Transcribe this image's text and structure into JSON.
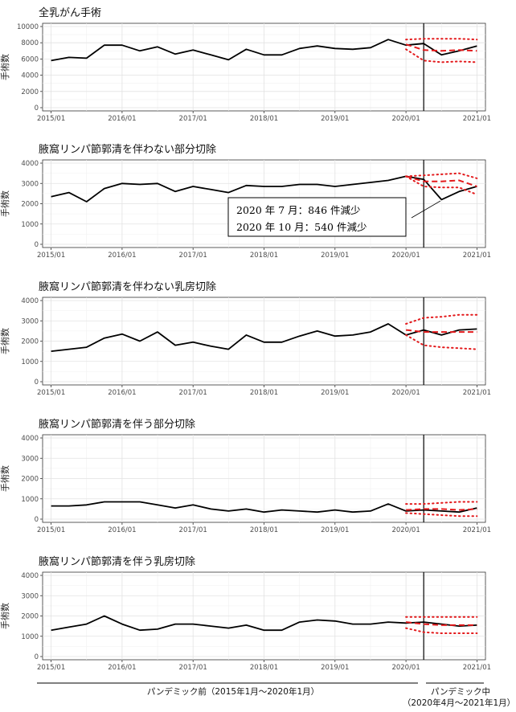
{
  "x_tick_labels": [
    "2015/01",
    "2016/01",
    "2017/01",
    "2018/01",
    "2019/01",
    "2020/01",
    "2021/01"
  ],
  "y_axis_label": "手術数",
  "footer": {
    "pre_pandemic": "パンデミック前（2015年1月～2020年1月）",
    "during_pandemic_1": "パンデミック中",
    "during_pandemic_2": "（2020年4月～2021年1月）"
  },
  "annotation": {
    "line1": "2020 年 7 月：846 件減少",
    "line2": "2020 年 10 月：540 件減少"
  },
  "chart_data": [
    {
      "type": "line",
      "title": "全乳がん手術",
      "ylabel": "手術数",
      "x_unit": "quarter_start",
      "ylim": [
        0,
        10000
      ],
      "yticks": [
        0,
        2000,
        4000,
        6000,
        8000,
        10000
      ],
      "observed": {
        "x": [
          "2015/01",
          "2015/04",
          "2015/07",
          "2015/10",
          "2016/01",
          "2016/04",
          "2016/07",
          "2016/10",
          "2017/01",
          "2017/04",
          "2017/07",
          "2017/10",
          "2018/01",
          "2018/04",
          "2018/07",
          "2018/10",
          "2019/01",
          "2019/04",
          "2019/07",
          "2019/10",
          "2020/01",
          "2020/04",
          "2020/07",
          "2020/10",
          "2021/01"
        ],
        "y": [
          5800,
          6200,
          6100,
          7700,
          7700,
          7000,
          7500,
          6600,
          7100,
          6500,
          5900,
          7200,
          6500,
          6500,
          7300,
          7600,
          7300,
          7200,
          7400,
          8400,
          7700,
          7900,
          6500,
          7000,
          7600
        ]
      },
      "expected": {
        "x": [
          "2020/01",
          "2020/04",
          "2020/07",
          "2020/10",
          "2021/01"
        ],
        "y": [
          7800,
          7100,
          7000,
          7100,
          7000
        ]
      },
      "upper": {
        "x": [
          "2020/01",
          "2020/04",
          "2020/07",
          "2020/10",
          "2021/01"
        ],
        "y": [
          8400,
          8500,
          8500,
          8500,
          8400
        ]
      },
      "lower": {
        "x": [
          "2020/01",
          "2020/04",
          "2020/07",
          "2020/10",
          "2021/01"
        ],
        "y": [
          7200,
          5800,
          5600,
          5700,
          5600
        ]
      }
    },
    {
      "type": "line",
      "title": "腋窩リンパ節郭清を伴わない部分切除",
      "ylabel": "手術数",
      "x_unit": "quarter_start",
      "ylim": [
        0,
        4000
      ],
      "yticks": [
        0,
        1000,
        2000,
        3000,
        4000
      ],
      "observed": {
        "x": [
          "2015/01",
          "2015/04",
          "2015/07",
          "2015/10",
          "2016/01",
          "2016/04",
          "2016/07",
          "2016/10",
          "2017/01",
          "2017/04",
          "2017/07",
          "2017/10",
          "2018/01",
          "2018/04",
          "2018/07",
          "2018/10",
          "2019/01",
          "2019/04",
          "2019/07",
          "2019/10",
          "2020/01",
          "2020/04",
          "2020/07",
          "2020/10",
          "2021/01"
        ],
        "y": [
          2350,
          2550,
          2100,
          2750,
          3000,
          2950,
          3000,
          2600,
          2850,
          2700,
          2550,
          2900,
          2850,
          2850,
          2950,
          2950,
          2850,
          2950,
          3050,
          3150,
          3350,
          3200,
          2200,
          2600,
          2850
        ]
      },
      "expected": {
        "x": [
          "2020/01",
          "2020/04",
          "2020/07",
          "2020/10",
          "2021/01"
        ],
        "y": [
          3350,
          3100,
          3100,
          3150,
          2850
        ]
      },
      "upper": {
        "x": [
          "2020/01",
          "2020/04",
          "2020/07",
          "2020/10",
          "2021/01"
        ],
        "y": [
          3350,
          3400,
          3450,
          3500,
          3250
        ]
      },
      "lower": {
        "x": [
          "2020/01",
          "2020/04",
          "2020/07",
          "2020/10",
          "2021/01"
        ],
        "y": [
          3350,
          2850,
          2800,
          2800,
          2450
        ]
      }
    },
    {
      "type": "line",
      "title": "腋窩リンパ節郭清を伴わない乳房切除",
      "ylabel": "手術数",
      "x_unit": "quarter_start",
      "ylim": [
        0,
        4000
      ],
      "yticks": [
        0,
        1000,
        2000,
        3000,
        4000
      ],
      "observed": {
        "x": [
          "2015/01",
          "2015/04",
          "2015/07",
          "2015/10",
          "2016/01",
          "2016/04",
          "2016/07",
          "2016/10",
          "2017/01",
          "2017/04",
          "2017/07",
          "2017/10",
          "2018/01",
          "2018/04",
          "2018/07",
          "2018/10",
          "2019/01",
          "2019/04",
          "2019/07",
          "2019/10",
          "2020/01",
          "2020/04",
          "2020/07",
          "2020/10",
          "2021/01"
        ],
        "y": [
          1500,
          1600,
          1700,
          2150,
          2350,
          2000,
          2450,
          1800,
          1950,
          1750,
          1600,
          2300,
          1950,
          1950,
          2250,
          2500,
          2250,
          2300,
          2450,
          2850,
          2300,
          2550,
          2300,
          2550,
          2600
        ]
      },
      "expected": {
        "x": [
          "2020/01",
          "2020/04",
          "2020/07",
          "2020/10",
          "2021/01"
        ],
        "y": [
          2550,
          2450,
          2450,
          2450,
          2450
        ]
      },
      "upper": {
        "x": [
          "2020/01",
          "2020/04",
          "2020/07",
          "2020/10",
          "2021/01"
        ],
        "y": [
          2850,
          3150,
          3200,
          3300,
          3300
        ]
      },
      "lower": {
        "x": [
          "2020/01",
          "2020/04",
          "2020/07",
          "2020/10",
          "2021/01"
        ],
        "y": [
          2300,
          1800,
          1700,
          1650,
          1600
        ]
      }
    },
    {
      "type": "line",
      "title": "腋窩リンパ節郭清を伴う部分切除",
      "ylabel": "手術数",
      "x_unit": "quarter_start",
      "ylim": [
        0,
        4000
      ],
      "yticks": [
        0,
        1000,
        2000,
        3000,
        4000
      ],
      "observed": {
        "x": [
          "2015/01",
          "2015/04",
          "2015/07",
          "2015/10",
          "2016/01",
          "2016/04",
          "2016/07",
          "2016/10",
          "2017/01",
          "2017/04",
          "2017/07",
          "2017/10",
          "2018/01",
          "2018/04",
          "2018/07",
          "2018/10",
          "2019/01",
          "2019/04",
          "2019/07",
          "2019/10",
          "2020/01",
          "2020/04",
          "2020/07",
          "2020/10",
          "2021/01"
        ],
        "y": [
          650,
          650,
          700,
          850,
          850,
          850,
          700,
          550,
          700,
          500,
          400,
          500,
          350,
          450,
          400,
          350,
          450,
          350,
          400,
          750,
          400,
          450,
          400,
          350,
          550
        ]
      },
      "expected": {
        "x": [
          "2020/01",
          "2020/04",
          "2020/07",
          "2020/10",
          "2021/01"
        ],
        "y": [
          450,
          500,
          500,
          450,
          500
        ]
      },
      "upper": {
        "x": [
          "2020/01",
          "2020/04",
          "2020/07",
          "2020/10",
          "2021/01"
        ],
        "y": [
          750,
          750,
          800,
          850,
          850
        ]
      },
      "lower": {
        "x": [
          "2020/01",
          "2020/04",
          "2020/07",
          "2020/10",
          "2021/01"
        ],
        "y": [
          300,
          250,
          200,
          150,
          150
        ]
      }
    },
    {
      "type": "line",
      "title": "腋窩リンパ節郭清を伴う乳房切除",
      "ylabel": "手術数",
      "x_unit": "quarter_start",
      "ylim": [
        0,
        4000
      ],
      "yticks": [
        0,
        1000,
        2000,
        3000,
        4000
      ],
      "observed": {
        "x": [
          "2015/01",
          "2015/04",
          "2015/07",
          "2015/10",
          "2016/01",
          "2016/04",
          "2016/07",
          "2016/10",
          "2017/01",
          "2017/04",
          "2017/07",
          "2017/10",
          "2018/01",
          "2018/04",
          "2018/07",
          "2018/10",
          "2019/01",
          "2019/04",
          "2019/07",
          "2019/10",
          "2020/01",
          "2020/04",
          "2020/07",
          "2020/10",
          "2021/01"
        ],
        "y": [
          1300,
          1450,
          1600,
          2000,
          1600,
          1300,
          1350,
          1600,
          1600,
          1500,
          1400,
          1550,
          1300,
          1300,
          1700,
          1800,
          1750,
          1600,
          1600,
          1700,
          1650,
          1700,
          1600,
          1500,
          1550
        ]
      },
      "expected": {
        "x": [
          "2020/01",
          "2020/04",
          "2020/07",
          "2020/10",
          "2021/01"
        ],
        "y": [
          1700,
          1600,
          1550,
          1550,
          1550
        ]
      },
      "upper": {
        "x": [
          "2020/01",
          "2020/04",
          "2020/07",
          "2020/10",
          "2021/01"
        ],
        "y": [
          1950,
          1950,
          1950,
          1950,
          1950
        ]
      },
      "lower": {
        "x": [
          "2020/01",
          "2020/04",
          "2020/07",
          "2020/10",
          "2021/01"
        ],
        "y": [
          1400,
          1200,
          1150,
          1150,
          1150
        ]
      }
    }
  ]
}
